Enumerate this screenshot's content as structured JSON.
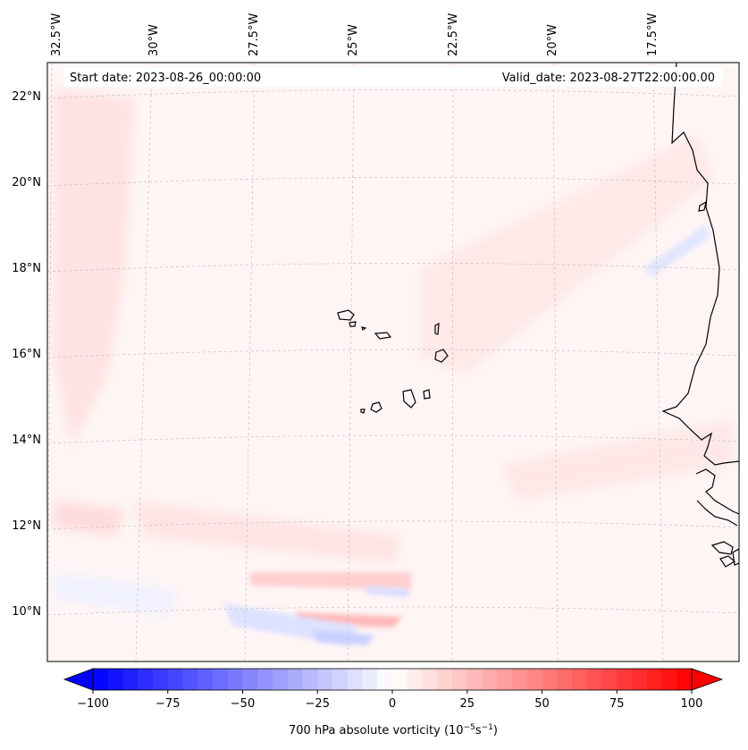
{
  "map": {
    "start_label": "Start date: 2023-08-26_00:00:00",
    "valid_label": "Valid_date: 2023-08-27T22:00:00.00",
    "lon_ticks": [
      "32.5°W",
      "30°W",
      "27.5°W",
      "25°W",
      "22.5°W",
      "20°W",
      "17.5°W"
    ],
    "lat_ticks": [
      "22°N",
      "20°N",
      "18°N",
      "16°N",
      "14°N",
      "12°N",
      "10°N"
    ],
    "colorbar": {
      "ticks": [
        "−100",
        "−75",
        "−50",
        "−25",
        "0",
        "25",
        "50",
        "75",
        "100"
      ],
      "label": "700 hPa absolute vorticity (10",
      "label_exp1": "−5",
      "label_mid": "s",
      "label_exp2": "−1",
      "label_end": ")",
      "colors": {
        "low": "#0000ff",
        "mid": "#ffffff",
        "high": "#ff0000"
      }
    },
    "colors": {
      "land_outline": "#000000",
      "grid": "#bbbbbb"
    }
  }
}
